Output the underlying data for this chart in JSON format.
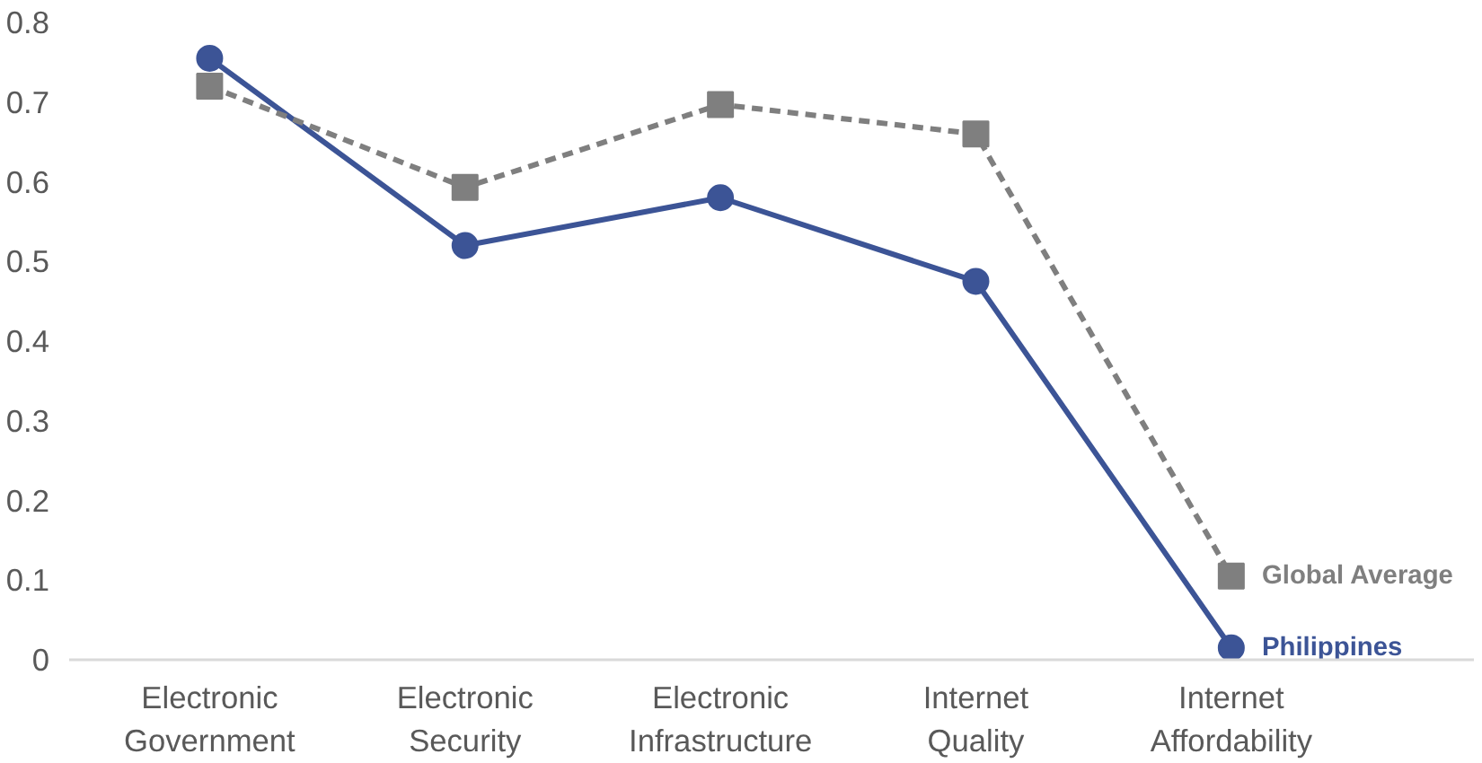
{
  "chart_data": {
    "type": "line",
    "categories": [
      "Electronic\nGovernment",
      "Electronic\nSecurity",
      "Electronic\nInfrastructure",
      "Internet\nQuality",
      "Internet\nAffordability"
    ],
    "series": [
      {
        "name": "Philippines",
        "color": "#3c5496",
        "marker": "circle",
        "line_style": "solid",
        "values": [
          0.755,
          0.52,
          0.58,
          0.475,
          0.015
        ]
      },
      {
        "name": "Global Average",
        "color": "#7f7f7f",
        "marker": "square",
        "line_style": "dashed",
        "values": [
          0.72,
          0.593,
          0.697,
          0.66,
          0.105
        ]
      }
    ],
    "ylim": [
      0,
      0.8
    ],
    "yticks": [
      0,
      0.1,
      0.2,
      0.3,
      0.4,
      0.5,
      0.6,
      0.7,
      0.8
    ],
    "grid": false
  }
}
